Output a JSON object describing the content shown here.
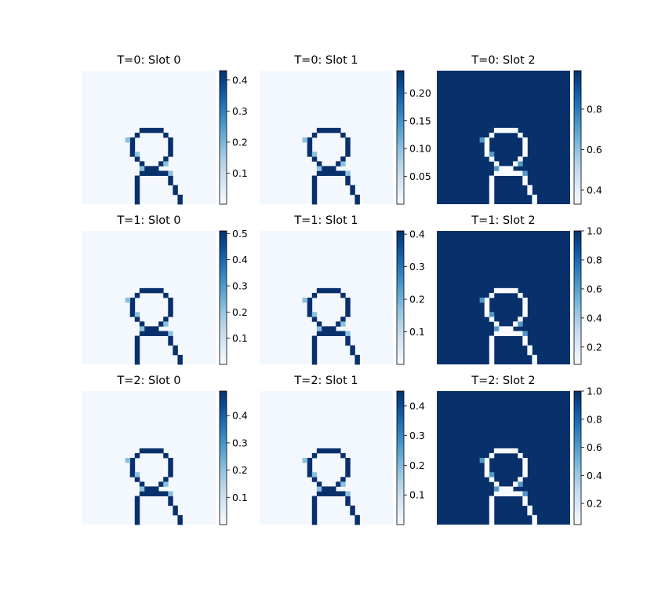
{
  "chart_data": {
    "type": "heatmap",
    "colormap": "Blues",
    "grid": false,
    "panels": [
      {
        "title": "T=0: Slot 0",
        "variant": "ring",
        "vmin": 0.0,
        "vmax": 0.43,
        "ticks": [
          0.1,
          0.2,
          0.3,
          0.4
        ],
        "tick_labels": [
          "0.1",
          "0.2",
          "0.3",
          "0.4"
        ],
        "bottom_start": 16
      },
      {
        "title": "T=0: Slot 1",
        "variant": "ring",
        "vmin": 0.0,
        "vmax": 0.24,
        "ticks": [
          0.05,
          0.1,
          0.15,
          0.2
        ],
        "tick_labels": [
          "0.05",
          "0.10",
          "0.15",
          "0.20"
        ],
        "bottom_start": 16
      },
      {
        "title": "T=0: Slot 2",
        "variant": "inverse",
        "vmin": 0.33,
        "vmax": 0.99,
        "ticks": [
          0.4,
          0.6,
          0.8
        ],
        "tick_labels": [
          "0.4",
          "0.6",
          "0.8"
        ],
        "bottom_start": 16
      },
      {
        "title": "T=1: Slot 0",
        "variant": "ring",
        "vmin": 0.0,
        "vmax": 0.51,
        "ticks": [
          0.1,
          0.2,
          0.3,
          0.4,
          0.5
        ],
        "tick_labels": [
          "0.1",
          "0.2",
          "0.3",
          "0.4",
          "0.5"
        ],
        "bottom_start": 16
      },
      {
        "title": "T=1: Slot 1",
        "variant": "ring",
        "vmin": 0.0,
        "vmax": 0.41,
        "ticks": [
          0.1,
          0.2,
          0.3,
          0.4
        ],
        "tick_labels": [
          "0.1",
          "0.2",
          "0.3",
          "0.4"
        ],
        "bottom_start": 16
      },
      {
        "title": "T=1: Slot 2",
        "variant": "inverse",
        "vmin": 0.08,
        "vmax": 1.0,
        "ticks": [
          0.2,
          0.4,
          0.6,
          0.8,
          1.0
        ],
        "tick_labels": [
          "0.2",
          "0.4",
          "0.6",
          "0.8",
          "1.0"
        ],
        "bottom_start": 16
      },
      {
        "title": "T=2: Slot 0",
        "variant": "ring",
        "vmin": 0.0,
        "vmax": 0.49,
        "ticks": [
          0.1,
          0.2,
          0.3,
          0.4
        ],
        "tick_labels": [
          "0.1",
          "0.2",
          "0.3",
          "0.4"
        ],
        "bottom_start": 16
      },
      {
        "title": "T=2: Slot 1",
        "variant": "ring",
        "vmin": 0.0,
        "vmax": 0.45,
        "ticks": [
          0.1,
          0.2,
          0.3,
          0.4
        ],
        "tick_labels": [
          "0.1",
          "0.2",
          "0.3",
          "0.4"
        ],
        "bottom_start": 16
      },
      {
        "title": "T=2: Slot 2",
        "variant": "inverse",
        "vmin": 0.05,
        "vmax": 1.0,
        "ticks": [
          0.2,
          0.4,
          0.6,
          0.8,
          1.0
        ],
        "tick_labels": [
          "0.2",
          "0.4",
          "0.6",
          "0.8",
          "1.0"
        ],
        "bottom_start": 16
      }
    ]
  }
}
